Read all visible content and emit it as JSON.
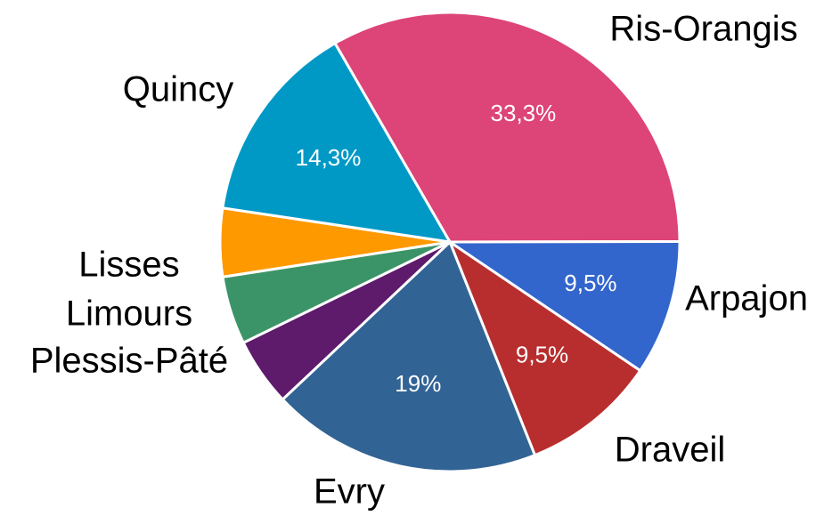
{
  "chart_data": {
    "type": "pie",
    "categories": [
      "Ris-Orangis",
      "Arpajon",
      "Draveil",
      "Evry",
      "Plessis-Pâté",
      "Limours",
      "Lisses",
      "Quincy"
    ],
    "values": [
      33.3,
      9.5,
      9.5,
      19,
      4.8,
      4.8,
      4.8,
      14.3
    ],
    "value_labels": [
      "33,3%",
      "9,5%",
      "9,5%",
      "19%",
      null,
      null,
      null,
      "14,3%"
    ],
    "colors": [
      "#dd4477",
      "#3366cc",
      "#b82e2e",
      "#316395",
      "#5e1a6b",
      "#3b9467",
      "#ff9900",
      "#0099c6"
    ]
  }
}
